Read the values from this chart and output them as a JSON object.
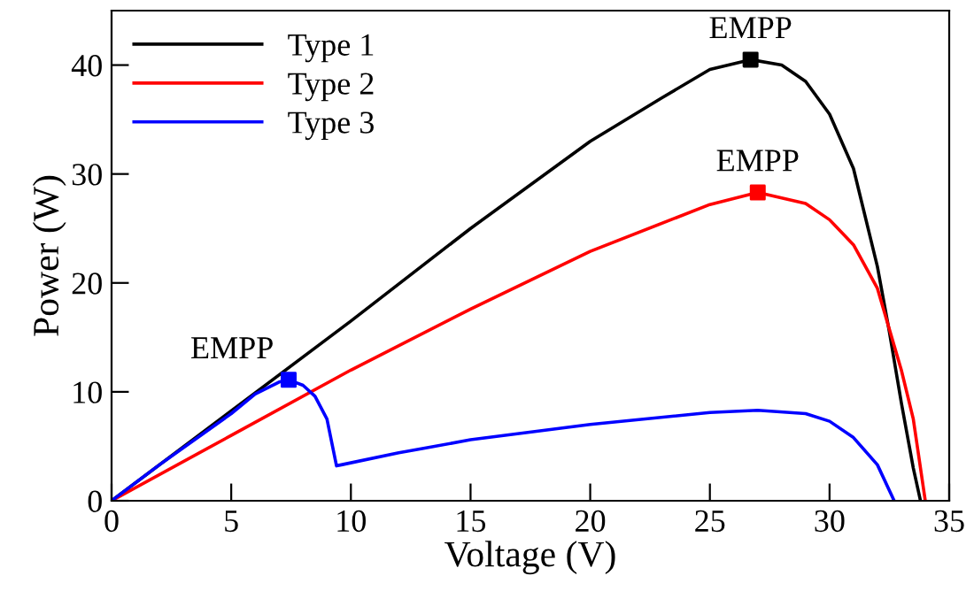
{
  "chart_data": {
    "type": "line",
    "xlabel": "Voltage (V)",
    "ylabel": "Power (W)",
    "xlim": [
      0,
      35
    ],
    "ylim": [
      0,
      45
    ],
    "xticks": [
      0,
      5,
      10,
      15,
      20,
      25,
      30,
      35
    ],
    "yticks": [
      0,
      10,
      20,
      30,
      40
    ],
    "grid": false,
    "legend": "top left",
    "marker": "none",
    "line_style": "solid",
    "series": [
      {
        "name": "Type 1",
        "color": "#000000",
        "x": [
          0,
          10,
          15,
          20,
          23,
          25,
          26.7,
          28,
          29,
          30,
          31,
          32,
          32.5,
          33,
          33.5,
          33.8
        ],
        "values": [
          0,
          16.5,
          25,
          33,
          37,
          39.6,
          40.5,
          40,
          38.5,
          35.5,
          30.5,
          21.5,
          15.5,
          9,
          3,
          0
        ]
      },
      {
        "name": "Type 2",
        "color": "#ff0000",
        "x": [
          0,
          5,
          10,
          15,
          20,
          25,
          27,
          29,
          30,
          31,
          32,
          33,
          33.5,
          34
        ],
        "values": [
          0,
          6,
          12,
          17.6,
          22.9,
          27.2,
          28.3,
          27.3,
          25.8,
          23.5,
          19.5,
          12,
          7.5,
          0
        ]
      },
      {
        "name": "Type 3",
        "color": "#0000ff",
        "x": [
          0,
          2,
          5,
          6,
          7,
          7.4,
          8,
          8.5,
          9,
          9.4,
          9.6,
          12,
          15,
          20,
          25,
          27,
          29,
          30,
          31,
          32,
          32.7
        ],
        "values": [
          0,
          3.3,
          8,
          9.8,
          10.9,
          11.1,
          10.6,
          9.6,
          7.5,
          3.2,
          3.3,
          4.4,
          5.6,
          7,
          8.1,
          8.3,
          8,
          7.3,
          5.8,
          3.3,
          0
        ]
      },
      {
        "type": "scatter",
        "marker": "square",
        "x": [
          26.7,
          27,
          7.4
        ],
        "values": [
          40.5,
          28.3,
          11.1
        ],
        "colors": [
          "#000000",
          "#ff0000",
          "#0000ff"
        ]
      }
    ],
    "annotations": [
      {
        "text": "EMPP",
        "x": 26.7,
        "y": 40.5
      },
      {
        "text": "EMPP",
        "x": 27,
        "y": 28.3
      },
      {
        "text": "EMPP",
        "x": 7.4,
        "y": 11.1
      }
    ]
  }
}
